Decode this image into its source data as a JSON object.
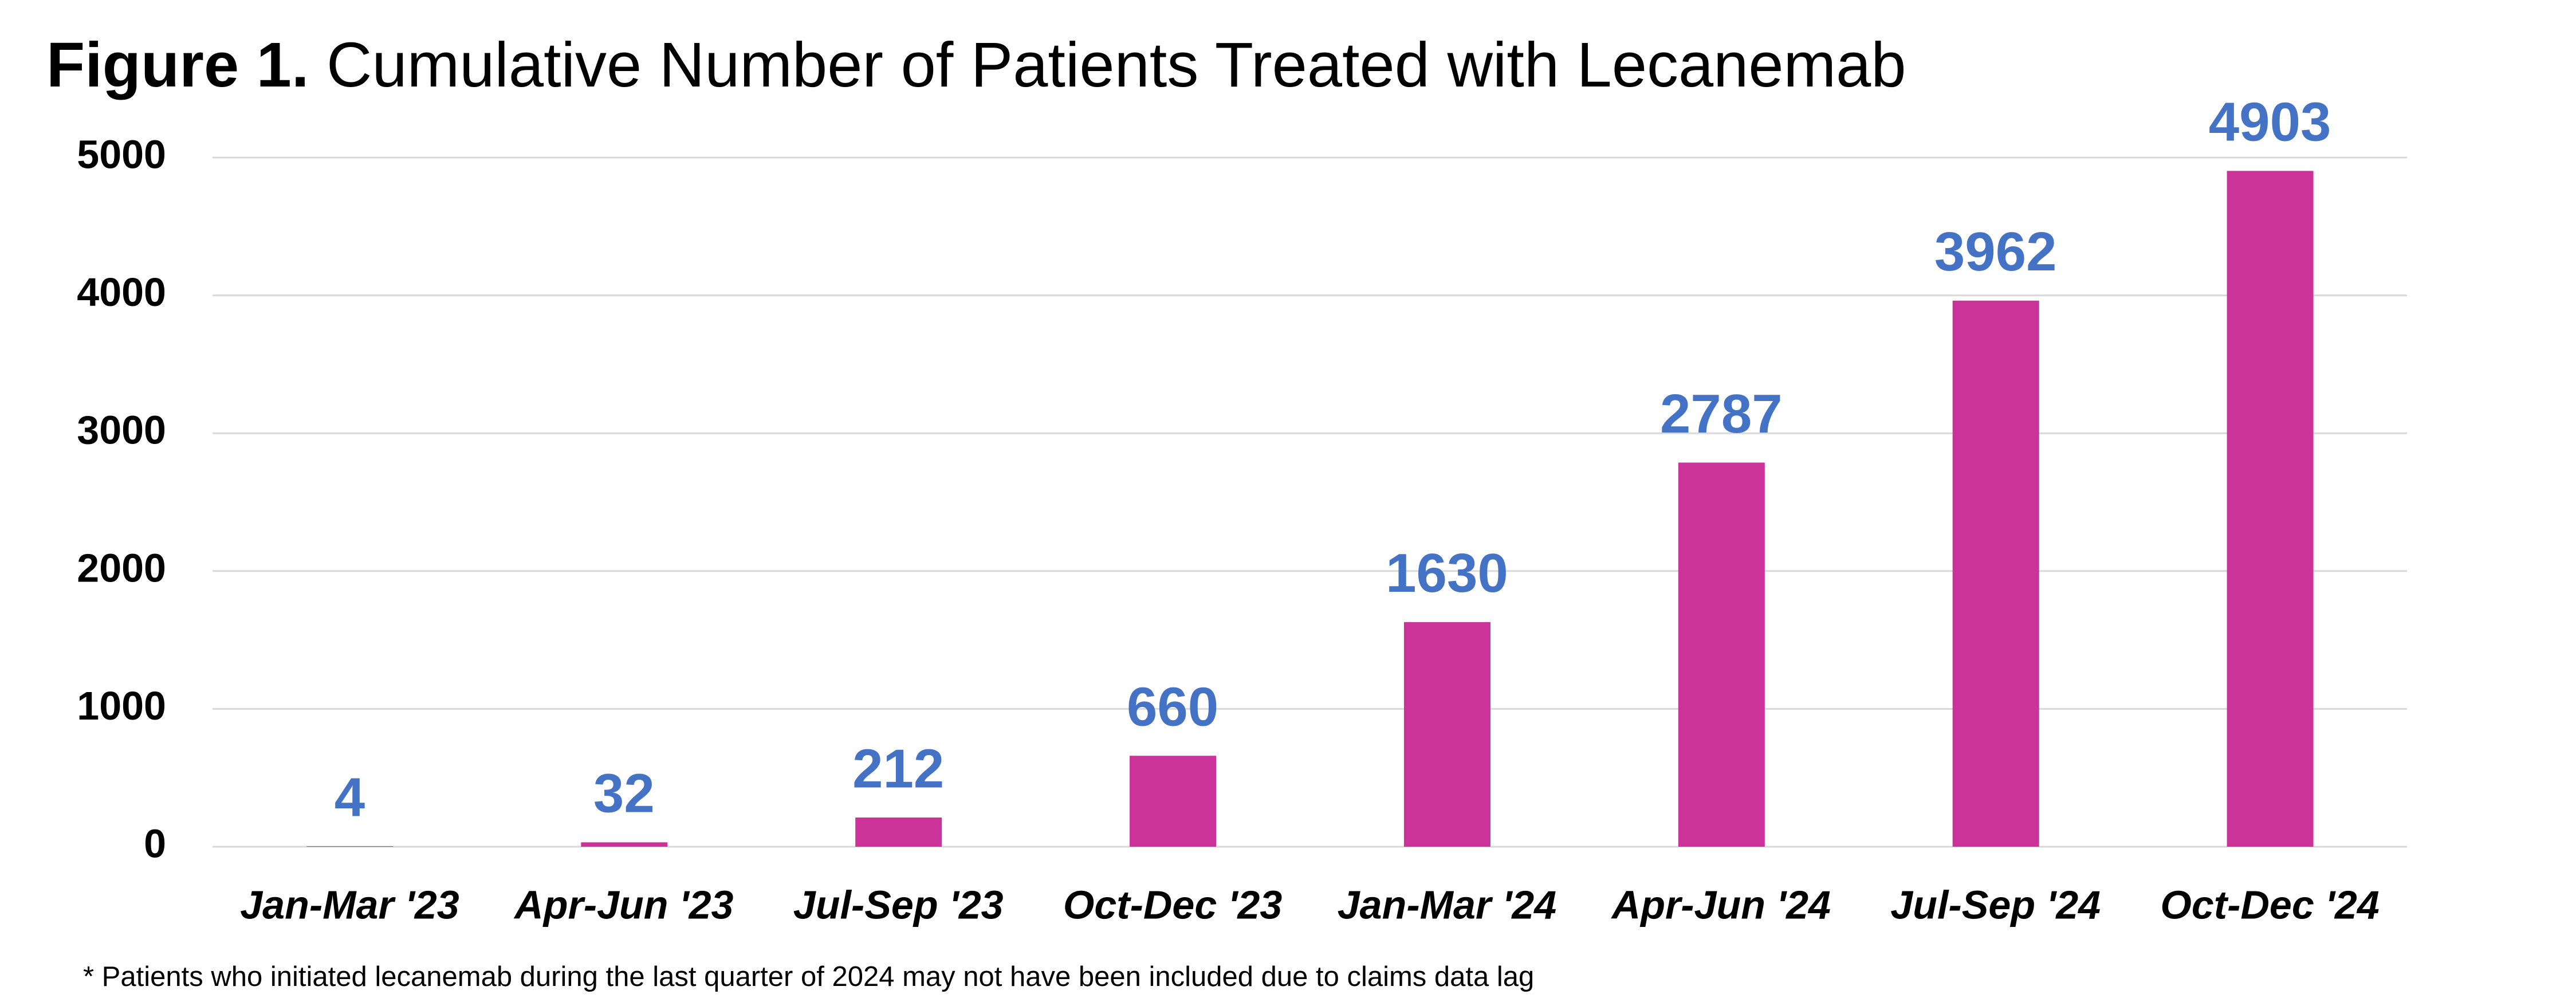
{
  "chart_data": {
    "type": "bar",
    "title_prefix": "Figure 1.",
    "title": "Cumulative Number of Patients Treated with Lecanemab",
    "categories": [
      "Jan-Mar '23",
      "Apr-Jun '23",
      "Jul-Sep '23",
      "Oct-Dec '23",
      "Jan-Mar '24",
      "Apr-Jun '24",
      "Jul-Sep '24",
      "Oct-Dec '24"
    ],
    "values": [
      4,
      32,
      212,
      660,
      1630,
      2787,
      3962,
      4903
    ],
    "color": "#cc3399",
    "label_color": "#4472c4",
    "ylim": [
      0,
      5000
    ],
    "yticks": [
      0,
      1000,
      2000,
      3000,
      4000,
      5000
    ],
    "grid": true,
    "footnote": "* Patients who initiated lecanemab during the last quarter of 2024 may not have been included due to claims data lag"
  }
}
